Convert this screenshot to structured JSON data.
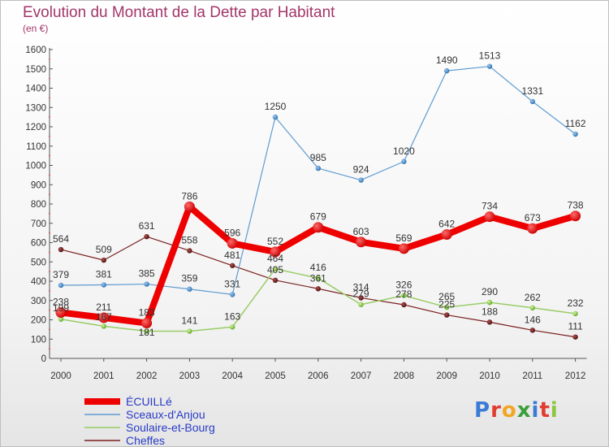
{
  "title": "Evolution du Montant de la Dette par Habitant",
  "subtitle": "(en €)",
  "brand": {
    "text": "Proxiti",
    "letter_colors": [
      "#3a7bd5",
      "#e03c31",
      "#f2a623",
      "#3a9e3a",
      "#3a7bd5",
      "#e03c31",
      "#8cc63f"
    ]
  },
  "chart_data": {
    "type": "line",
    "x": [
      "2000",
      "2001",
      "2002",
      "2003",
      "2004",
      "2005",
      "2006",
      "2007",
      "2008",
      "2009",
      "2010",
      "2011",
      "2012"
    ],
    "ylim": [
      0,
      1600
    ],
    "yticks": [
      0,
      100,
      200,
      300,
      400,
      500,
      600,
      700,
      800,
      900,
      1000,
      1100,
      1200,
      1300,
      1400,
      1500,
      1600
    ],
    "grid": false,
    "legend_placement": "bottom-left",
    "series": [
      {
        "name": "Cheffes",
        "color": "#7a1f1f",
        "values": [
          564,
          509,
          631,
          558,
          481,
          405,
          361,
          314,
          278,
          225,
          188,
          146,
          111
        ],
        "labels": [
          "564",
          "509",
          "631",
          "558",
          "481",
          "405",
          "361",
          "314",
          "278",
          "225",
          "188",
          "146",
          "111"
        ]
      },
      {
        "name": "Soulaire-et-Bourg",
        "color": "#99cc66",
        "values": [
          203,
          167,
          141,
          141,
          163,
          464,
          416,
          279,
          326,
          265,
          290,
          262,
          232
        ],
        "labels": [
          "",
          "",
          "",
          "141",
          "163",
          "464",
          "416",
          "279",
          "326",
          "265",
          "290",
          "262",
          "232"
        ]
      },
      {
        "name": "Sceaux-d'Anjou",
        "color": "#5f9bd1",
        "values": [
          379,
          381,
          385,
          359,
          331,
          1250,
          985,
          924,
          1020,
          1490,
          1513,
          1331,
          1162
        ],
        "labels": [
          "379",
          "381",
          "385",
          "359",
          "331",
          "1250",
          "985",
          "924",
          "1020",
          "1490",
          "1513",
          "1331",
          "1162"
        ]
      },
      {
        "name": "ÉCUILLé",
        "color": "#ee0000",
        "values": [
          238,
          211,
          183,
          786,
          596,
          552,
          679,
          603,
          569,
          642,
          734,
          673,
          738
        ],
        "labels": [
          "238",
          "211",
          "183",
          "786",
          "596",
          "552",
          "679",
          "603",
          "569",
          "642",
          "734",
          "673",
          "738"
        ]
      }
    ],
    "overlap_labels": [
      "199",
      "167",
      "181"
    ]
  }
}
